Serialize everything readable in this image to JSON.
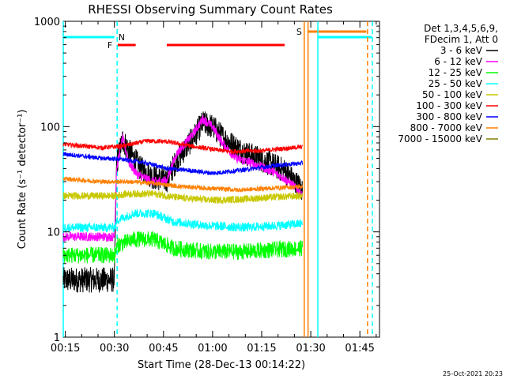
{
  "chart_data": {
    "type": "line",
    "title": "RHESSI Observing Summary Count Rates",
    "xlabel": "Start Time (28-Dec-13 00:14:22)",
    "ylabel": "Count Rate (s⁻¹ detector⁻¹)",
    "yscale": "log",
    "ylim": [
      1,
      1000
    ],
    "xlim": [
      "00:14:22",
      "01:51:00"
    ],
    "x_tick_labels": [
      "00:15",
      "00:30",
      "00:45",
      "01:00",
      "01:15",
      "01:30",
      "01:45"
    ],
    "y_tick_labels": [
      "1",
      "10",
      "100",
      "1000"
    ],
    "legend_title": "Det 1,3,4,5,6,9, FDecim 1, Att 0",
    "legend_header_lines": [
      "Det 1,3,4,5,6,9,",
      "FDecim 1, Att 0"
    ],
    "legend_position": "right",
    "footer_date": "25-Oct-2021 20:23",
    "flags": [
      {
        "label": "N",
        "color": "#00ffff",
        "segments": [
          [
            "00:14:22",
            "00:30:00"
          ],
          [
            "01:32:00",
            "01:48:40"
          ]
        ]
      },
      {
        "label": "F",
        "color": "#ff0000",
        "segments": [
          [
            "00:31:00",
            "00:36:30"
          ],
          [
            "00:46:00",
            "01:22:00"
          ]
        ]
      },
      {
        "label": "S",
        "color": "#ff8000",
        "segments": [
          [
            "01:29:00",
            "01:47:00"
          ]
        ]
      }
    ],
    "vertical_markers": [
      {
        "time": "00:14:22",
        "color": "#00ffff",
        "style": "solid"
      },
      {
        "time": "00:30:50",
        "color": "#00ffff",
        "style": "dashed"
      },
      {
        "time": "01:28:00",
        "color": "#ff8000",
        "style": "solid"
      },
      {
        "time": "01:29:10",
        "color": "#ff8000",
        "style": "solid"
      },
      {
        "time": "01:32:10",
        "color": "#00ffff",
        "style": "solid"
      },
      {
        "time": "01:47:20",
        "color": "#ff8000",
        "style": "dashed"
      },
      {
        "time": "01:48:50",
        "color": "#00ffff",
        "style": "dashed"
      }
    ],
    "data_start": "00:14:22",
    "data_end": "01:27:30",
    "series": [
      {
        "name": "3 - 6 keV",
        "color": "#000000",
        "noise": 0.28,
        "points": [
          [
            "00:14:22",
            3.5
          ],
          [
            "00:30:00",
            3.5
          ],
          [
            "00:30:40",
            45
          ],
          [
            "00:32:30",
            75
          ],
          [
            "00:35:00",
            55
          ],
          [
            "00:38:00",
            40
          ],
          [
            "00:42:00",
            33
          ],
          [
            "00:46:00",
            31
          ],
          [
            "00:49:00",
            48
          ],
          [
            "00:54:00",
            78
          ],
          [
            "00:57:00",
            108
          ],
          [
            "01:00:00",
            100
          ],
          [
            "01:03:00",
            80
          ],
          [
            "01:07:00",
            64
          ],
          [
            "01:10:00",
            56
          ],
          [
            "01:14:00",
            50
          ],
          [
            "01:18:00",
            44
          ],
          [
            "01:22:00",
            38
          ],
          [
            "01:25:00",
            30
          ],
          [
            "01:27:30",
            25
          ]
        ]
      },
      {
        "name": "6 - 12 keV",
        "color": "#ff00ff",
        "noise": 0.1,
        "points": [
          [
            "00:14:22",
            9
          ],
          [
            "00:30:00",
            9
          ],
          [
            "00:30:40",
            40
          ],
          [
            "00:32:30",
            78
          ],
          [
            "00:34:30",
            45
          ],
          [
            "00:37:00",
            35
          ],
          [
            "00:42:00",
            30
          ],
          [
            "00:46:00",
            31
          ],
          [
            "00:49:00",
            55
          ],
          [
            "00:54:00",
            85
          ],
          [
            "00:57:00",
            118
          ],
          [
            "01:00:00",
            100
          ],
          [
            "01:03:00",
            70
          ],
          [
            "01:07:00",
            50
          ],
          [
            "01:12:00",
            45
          ],
          [
            "01:18:00",
            38
          ],
          [
            "01:22:00",
            32
          ],
          [
            "01:25:00",
            27
          ],
          [
            "01:27:30",
            22
          ]
        ]
      },
      {
        "name": "12 - 25 keV",
        "color": "#00ff00",
        "noise": 0.18,
        "points": [
          [
            "00:14:22",
            6
          ],
          [
            "00:30:00",
            6
          ],
          [
            "00:31:00",
            7.5
          ],
          [
            "00:36:00",
            8.5
          ],
          [
            "00:42:00",
            8.5
          ],
          [
            "00:48:00",
            7
          ],
          [
            "00:58:00",
            6.5
          ],
          [
            "01:10:00",
            6.5
          ],
          [
            "01:20:00",
            6.8
          ],
          [
            "01:27:30",
            7
          ]
        ]
      },
      {
        "name": "25 - 50 keV",
        "color": "#00ffff",
        "noise": 0.1,
        "points": [
          [
            "00:14:22",
            11
          ],
          [
            "00:30:00",
            11
          ],
          [
            "00:31:00",
            13
          ],
          [
            "00:36:00",
            15
          ],
          [
            "00:42:00",
            15
          ],
          [
            "00:48:00",
            12.5
          ],
          [
            "00:58:00",
            11.5
          ],
          [
            "01:10:00",
            11
          ],
          [
            "01:20:00",
            11.5
          ],
          [
            "01:27:30",
            12
          ]
        ]
      },
      {
        "name": "50 - 100 keV",
        "color": "#c8c800",
        "noise": 0.08,
        "points": [
          [
            "00:14:22",
            22
          ],
          [
            "00:30:00",
            22
          ],
          [
            "00:34:00",
            23
          ],
          [
            "00:42:00",
            23
          ],
          [
            "00:50:00",
            21
          ],
          [
            "01:00:00",
            20
          ],
          [
            "01:10:00",
            20.5
          ],
          [
            "01:20:00",
            21.5
          ],
          [
            "01:27:30",
            22
          ]
        ]
      },
      {
        "name": "100 - 300 keV",
        "color": "#ff0000",
        "noise": 0.05,
        "points": [
          [
            "00:14:22",
            68
          ],
          [
            "00:26:00",
            63
          ],
          [
            "00:32:00",
            65
          ],
          [
            "00:40:00",
            73
          ],
          [
            "00:46:00",
            72
          ],
          [
            "00:55:00",
            64
          ],
          [
            "01:05:00",
            58
          ],
          [
            "01:15:00",
            59
          ],
          [
            "01:22:00",
            62
          ],
          [
            "01:27:30",
            64
          ]
        ]
      },
      {
        "name": "300 - 800 keV",
        "color": "#0000ff",
        "noise": 0.05,
        "points": [
          [
            "00:14:22",
            55
          ],
          [
            "00:26:00",
            50
          ],
          [
            "00:32:00",
            49
          ],
          [
            "00:40:00",
            45
          ],
          [
            "00:46:00",
            40
          ],
          [
            "00:54:00",
            38
          ],
          [
            "01:00:00",
            36
          ],
          [
            "01:10:00",
            39
          ],
          [
            "01:20:00",
            43
          ],
          [
            "01:27:30",
            45
          ]
        ]
      },
      {
        "name": "800 - 7000 keV",
        "color": "#ff8000",
        "noise": 0.05,
        "points": [
          [
            "00:14:22",
            32
          ],
          [
            "00:26:00",
            30
          ],
          [
            "00:34:00",
            30
          ],
          [
            "00:42:00",
            29
          ],
          [
            "00:50:00",
            27
          ],
          [
            "00:58:00",
            26
          ],
          [
            "01:08:00",
            25
          ],
          [
            "01:18:00",
            26
          ],
          [
            "01:27:30",
            27
          ]
        ]
      },
      {
        "name": "7000 - 15000 keV",
        "color": "#808000",
        "noise": 0.0,
        "points": []
      }
    ]
  }
}
